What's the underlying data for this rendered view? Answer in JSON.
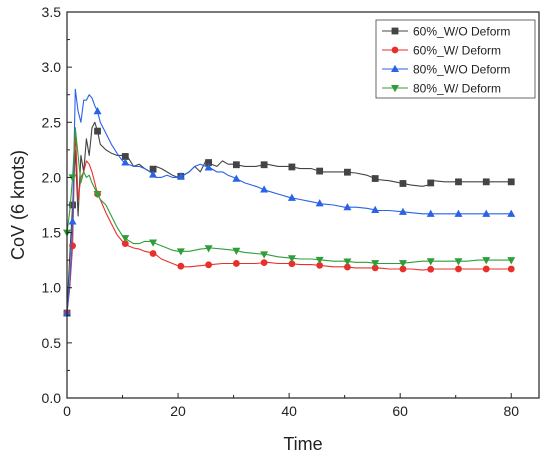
{
  "chart_data": {
    "type": "line",
    "xlabel": "Time",
    "ylabel": "CoV (6 knots)",
    "xlim": [
      0,
      85
    ],
    "ylim": [
      0,
      3.5
    ],
    "x_ticks": [
      0,
      20,
      40,
      60,
      80
    ],
    "x_tick_labels": [
      "0",
      "20",
      "40",
      "60",
      "80"
    ],
    "y_ticks": [
      0,
      0.5,
      1.0,
      1.5,
      2.0,
      2.5,
      3.0,
      3.5
    ],
    "y_tick_labels": [
      "0.0",
      "0.5",
      "1.0",
      "1.5",
      "2.0",
      "2.5",
      "3.0",
      "3.5"
    ],
    "grid": false,
    "legend_position": "top-right",
    "series": [
      {
        "name": "60%_W/O Deform",
        "color": "#444444",
        "marker": "square",
        "x": [
          0,
          0.5,
          1,
          1.5,
          2,
          2.5,
          3,
          3.5,
          4,
          4.5,
          5,
          5.5,
          6,
          7,
          8,
          9,
          10,
          11,
          12,
          13,
          14,
          15,
          16,
          17,
          18,
          19,
          20,
          21,
          22,
          23,
          24,
          25,
          26,
          27,
          28,
          29,
          30,
          32,
          34,
          36,
          38,
          40,
          42,
          44,
          46,
          48,
          50,
          52,
          54,
          56,
          58,
          60,
          62,
          64,
          65,
          66,
          68,
          70,
          72,
          74,
          76,
          78,
          80
        ],
        "y": [
          0.77,
          1.3,
          1.75,
          2.25,
          1.65,
          2.2,
          2.05,
          2.35,
          2.2,
          2.45,
          2.5,
          2.42,
          2.3,
          2.25,
          2.22,
          2.2,
          2.2,
          2.18,
          2.1,
          2.12,
          2.08,
          2.05,
          2.1,
          2.08,
          2.05,
          2.02,
          2.0,
          2.02,
          2.05,
          2.1,
          2.05,
          2.15,
          2.12,
          2.1,
          2.15,
          2.12,
          2.12,
          2.1,
          2.1,
          2.12,
          2.1,
          2.1,
          2.08,
          2.08,
          2.05,
          2.05,
          2.05,
          2.04,
          2.02,
          1.98,
          1.97,
          1.95,
          1.93,
          1.92,
          1.93,
          1.97,
          1.96,
          1.96,
          1.96,
          1.96,
          1.96,
          1.96,
          1.96
        ],
        "marker_x": [
          0,
          1,
          5.5,
          10.5,
          15.5,
          20.5,
          25.5,
          30.5,
          35.5,
          40.5,
          45.5,
          50.5,
          55.5,
          60.5,
          65.5,
          70.5,
          75.5,
          80
        ]
      },
      {
        "name": "60%_W/ Deform",
        "color": "#e8302a",
        "marker": "circle",
        "x": [
          0,
          0.5,
          1,
          1.5,
          2,
          2.5,
          3,
          3.5,
          4,
          4.5,
          5,
          5.5,
          6,
          7,
          8,
          9,
          10,
          11,
          12,
          13,
          14,
          15,
          16,
          17,
          18,
          19,
          20,
          21,
          22,
          24,
          26,
          28,
          30,
          32,
          34,
          36,
          38,
          40,
          42,
          44,
          46,
          48,
          50,
          52,
          54,
          56,
          58,
          60,
          62,
          64,
          66,
          68,
          70,
          72,
          74,
          76,
          78,
          80
        ],
        "y": [
          0.77,
          1.0,
          1.38,
          2.45,
          1.8,
          2.0,
          2.05,
          2.15,
          2.12,
          2.05,
          1.95,
          1.85,
          1.8,
          1.68,
          1.58,
          1.48,
          1.42,
          1.38,
          1.36,
          1.35,
          1.33,
          1.32,
          1.3,
          1.26,
          1.24,
          1.22,
          1.2,
          1.19,
          1.19,
          1.2,
          1.21,
          1.22,
          1.22,
          1.22,
          1.22,
          1.23,
          1.22,
          1.22,
          1.21,
          1.21,
          1.2,
          1.19,
          1.19,
          1.18,
          1.18,
          1.18,
          1.17,
          1.17,
          1.17,
          1.16,
          1.17,
          1.17,
          1.17,
          1.17,
          1.17,
          1.17,
          1.17,
          1.17
        ],
        "marker_x": [
          0,
          1,
          5.5,
          10.5,
          15.5,
          20.5,
          25.5,
          30.5,
          35.5,
          40.5,
          45.5,
          50.5,
          55.5,
          60.5,
          65.5,
          70.5,
          75.5,
          80
        ]
      },
      {
        "name": "80%_W/O Deform",
        "color": "#2a62e8",
        "marker": "triangle-up",
        "x": [
          0,
          0.5,
          1,
          1.5,
          2,
          2.5,
          3,
          3.5,
          4,
          4.5,
          5,
          5.5,
          6,
          7,
          8,
          9,
          10,
          11,
          12,
          13,
          14,
          15,
          16,
          17,
          18,
          19,
          20,
          21,
          22,
          23,
          24,
          25,
          26,
          27,
          28,
          29,
          30,
          32,
          34,
          36,
          38,
          40,
          42,
          44,
          46,
          48,
          50,
          52,
          54,
          56,
          58,
          60,
          62,
          64,
          66,
          68,
          70,
          72,
          74,
          76,
          78,
          80
        ],
        "y": [
          0.77,
          1.05,
          1.6,
          2.8,
          2.6,
          2.5,
          2.7,
          2.7,
          2.75,
          2.72,
          2.65,
          2.6,
          2.5,
          2.4,
          2.3,
          2.22,
          2.15,
          2.12,
          2.1,
          2.1,
          2.08,
          2.05,
          2.0,
          2.0,
          2.02,
          2.0,
          2.0,
          2.02,
          2.05,
          2.1,
          2.12,
          2.1,
          2.08,
          2.05,
          2.05,
          2.02,
          2.0,
          1.95,
          1.92,
          1.88,
          1.85,
          1.82,
          1.8,
          1.78,
          1.76,
          1.75,
          1.73,
          1.73,
          1.72,
          1.7,
          1.7,
          1.69,
          1.68,
          1.67,
          1.67,
          1.67,
          1.67,
          1.67,
          1.67,
          1.67,
          1.67,
          1.67
        ],
        "marker_x": [
          0,
          1,
          5.5,
          10.5,
          15.5,
          20.5,
          25.5,
          30.5,
          35.5,
          40.5,
          45.5,
          50.5,
          55.5,
          60.5,
          65.5,
          70.5,
          75.5,
          80
        ]
      },
      {
        "name": "80%_W/ Deform",
        "color": "#2f9e3a",
        "marker": "triangle-down",
        "x": [
          0,
          0.5,
          1,
          1.5,
          2,
          2.5,
          3,
          3.5,
          4,
          4.5,
          5,
          5.5,
          6,
          7,
          8,
          9,
          10,
          11,
          12,
          13,
          14,
          15,
          16,
          17,
          18,
          19,
          20,
          21,
          22,
          24,
          26,
          28,
          30,
          32,
          34,
          36,
          38,
          40,
          42,
          44,
          46,
          48,
          50,
          52,
          54,
          56,
          58,
          60,
          62,
          64,
          66,
          68,
          70,
          72,
          74,
          76,
          78,
          80
        ],
        "y": [
          1.5,
          1.7,
          2.0,
          2.45,
          2.2,
          1.95,
          2.05,
          2.0,
          2.02,
          1.95,
          1.9,
          1.85,
          1.8,
          1.75,
          1.65,
          1.55,
          1.47,
          1.43,
          1.4,
          1.4,
          1.42,
          1.42,
          1.4,
          1.38,
          1.36,
          1.34,
          1.33,
          1.33,
          1.33,
          1.35,
          1.36,
          1.35,
          1.34,
          1.32,
          1.31,
          1.3,
          1.28,
          1.27,
          1.26,
          1.26,
          1.25,
          1.24,
          1.24,
          1.23,
          1.23,
          1.22,
          1.22,
          1.22,
          1.23,
          1.24,
          1.24,
          1.24,
          1.24,
          1.24,
          1.25,
          1.25,
          1.25,
          1.25
        ],
        "marker_x": [
          0,
          1,
          5.5,
          10.5,
          15.5,
          20.5,
          25.5,
          30.5,
          35.5,
          40.5,
          45.5,
          50.5,
          55.5,
          60.5,
          65.5,
          70.5,
          75.5,
          80
        ]
      }
    ]
  }
}
